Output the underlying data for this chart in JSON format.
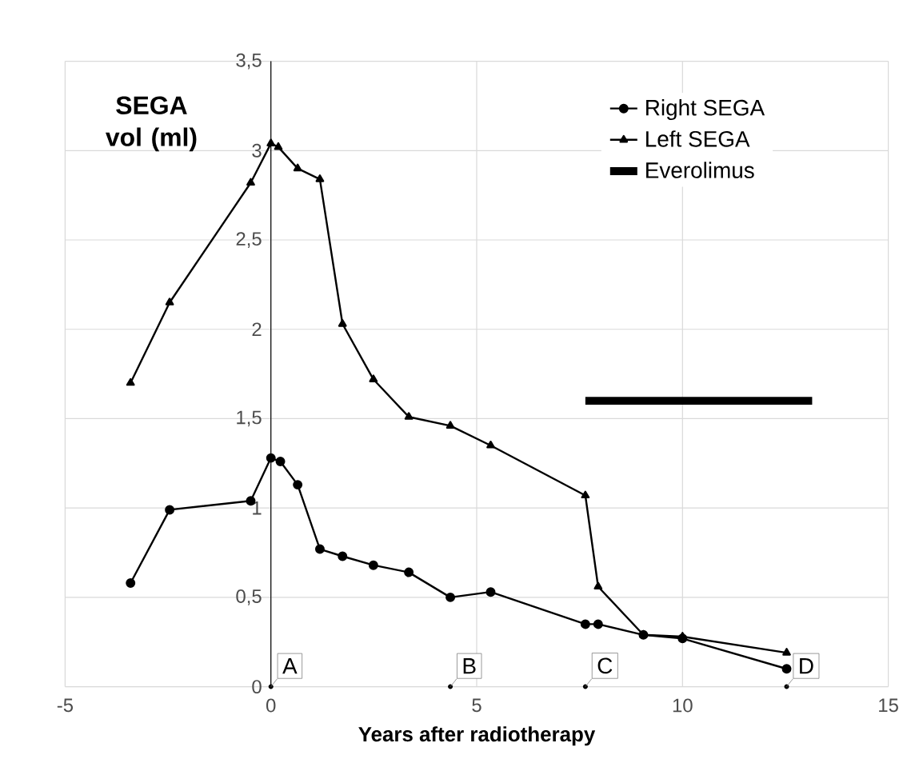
{
  "chart_data": {
    "type": "line",
    "ylabel": "SEGA vol (ml)",
    "xlabel": "Years after radiotherapy",
    "xlim": [
      -5,
      15
    ],
    "xticks": [
      -5,
      0,
      5,
      10,
      15
    ],
    "ylim": [
      0,
      3.5
    ],
    "yticks": [
      0,
      {
        "value": 0.5,
        "label": "0,5"
      },
      1,
      {
        "value": 1.5,
        "label": "1,5"
      },
      2,
      {
        "value": 2.5,
        "label": "2,5"
      },
      3,
      {
        "value": 3.5,
        "label": "3,5"
      }
    ],
    "grid": true,
    "legend": "top right",
    "series": [
      {
        "name": "Right SEGA",
        "color": "#000000",
        "marker": "circle",
        "x": [
          -3.41,
          -2.46,
          -0.49,
          0,
          0.23,
          0.65,
          1.19,
          1.74,
          2.49,
          3.35,
          4.36,
          5.34,
          7.64,
          7.95,
          9.05,
          10.0,
          12.53
        ],
        "values": [
          0.58,
          0.99,
          1.04,
          1.28,
          1.26,
          1.13,
          0.77,
          0.73,
          0.68,
          0.64,
          0.5,
          0.53,
          0.35,
          0.35,
          0.29,
          0.27,
          0.1
        ]
      },
      {
        "name": "Left SEGA",
        "color": "#000000",
        "marker": "triangle",
        "x": [
          -3.41,
          -2.46,
          -0.49,
          0,
          0.18,
          0.65,
          1.19,
          1.74,
          2.49,
          3.35,
          4.36,
          5.34,
          7.64,
          7.95,
          9.05,
          10.0,
          12.53
        ],
        "values": [
          1.7,
          2.15,
          2.82,
          3.04,
          3.02,
          2.9,
          2.84,
          2.03,
          1.72,
          1.51,
          1.46,
          1.35,
          1.07,
          0.56,
          0.29,
          0.28,
          0.19
        ]
      },
      {
        "name": "Everolimus",
        "color": "#000000",
        "marker": "none",
        "x": [
          7.64,
          13.15
        ],
        "values": [
          1.6,
          1.6
        ]
      }
    ],
    "annotations": [
      {
        "text": "A",
        "x": 0,
        "y": 0
      },
      {
        "text": "B",
        "x": 4.36,
        "y": 0
      },
      {
        "text": "C",
        "x": 7.64,
        "y": 0
      },
      {
        "text": "D",
        "x": 12.53,
        "y": 0
      }
    ]
  }
}
